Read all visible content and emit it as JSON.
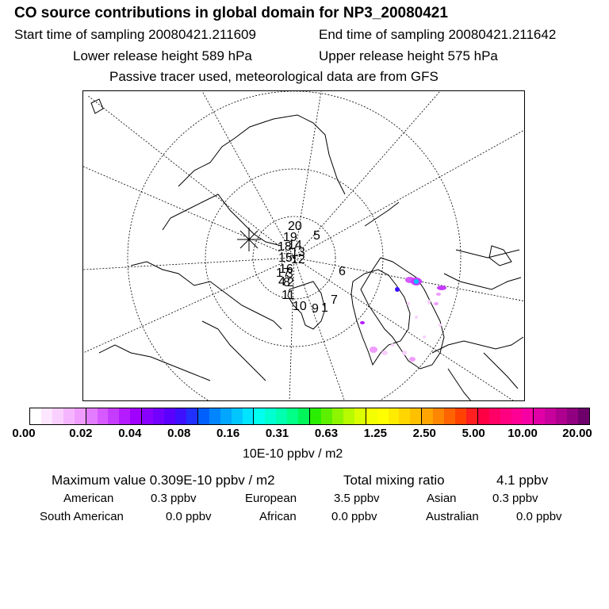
{
  "header": {
    "title": "CO  source contributions in global domain for NP3_20080421",
    "start_time": "Start time of sampling 20080421.211609",
    "end_time": "End time of sampling 20080421.211642",
    "lower_height": "Lower release height  589 hPa",
    "upper_height": "Upper release height  575 hPa",
    "tracer_note": "Passive tracer used, meteorological data are from GFS"
  },
  "map": {
    "trajectory_labels": [
      "20",
      "19",
      "5",
      "18",
      "14",
      "13",
      "15",
      "12",
      "6",
      "16",
      "17",
      "3",
      "4",
      "2",
      "8",
      "11",
      "10",
      "9",
      "1",
      "7"
    ]
  },
  "colorbar": {
    "colors": [
      "#ffffff",
      "#fde6ff",
      "#fad0ff",
      "#f6b6ff",
      "#f09cff",
      "#e37cff",
      "#d65aff",
      "#c63cff",
      "#b41cff",
      "#a000ff",
      "#8a00ff",
      "#7300ff",
      "#5a00ff",
      "#3d10ff",
      "#2030ff",
      "#0060ff",
      "#0085ff",
      "#00a6ff",
      "#00c6ff",
      "#00e5ff",
      "#00ffee",
      "#00ffd0",
      "#00ffae",
      "#00ff86",
      "#00f55a",
      "#2aee00",
      "#5cf000",
      "#8ef500",
      "#b8fa00",
      "#dcff00",
      "#f4ff00",
      "#ffff00",
      "#ffec00",
      "#ffd600",
      "#ffc000",
      "#ffa400",
      "#ff8600",
      "#ff6400",
      "#ff4200",
      "#ff1e20",
      "#ff0044",
      "#ff0066",
      "#ff0080",
      "#ff0095",
      "#f500a5",
      "#e000a6",
      "#c8009c",
      "#ae008e",
      "#900080",
      "#6e006c"
    ],
    "ticks": [
      "0.00",
      "0.02",
      "0.04",
      "0.08",
      "0.16",
      "0.31",
      "0.63",
      "1.25",
      "2.50",
      "5.00",
      "10.00",
      "20.00"
    ],
    "unit_label": "10E-10 ppbv / m2"
  },
  "summary": {
    "max_value": "Maximum value  0.309E-10 ppbv / m2",
    "total_label": "Total mixing ratio",
    "total_value": "4.1 ppbv"
  },
  "regions": [
    {
      "name": "American",
      "value": "0.3 ppbv"
    },
    {
      "name": "European",
      "value": "3.5 ppbv"
    },
    {
      "name": "Asian",
      "value": "0.3 ppbv"
    },
    {
      "name": "South American",
      "value": "0.0 ppbv"
    },
    {
      "name": "African",
      "value": "0.0 ppbv"
    },
    {
      "name": "Australian",
      "value": "0.0 ppbv"
    }
  ]
}
